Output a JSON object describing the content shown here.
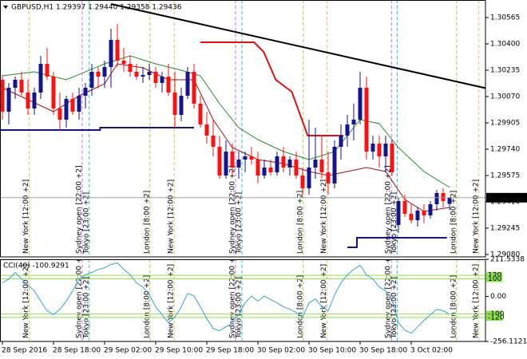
{
  "chart_data": [
    {
      "type": "candlestick",
      "title": "GBPUSD,H1  1.29397 1.29440 1.29358 1.29436",
      "bull_color": "#14148c",
      "bear_color": "#ff1010",
      "ylim": [
        1.29065,
        1.30675
      ],
      "yticks": [
        1.30565,
        {
          "value": 1.304,
          "label": "1.30400"
        },
        1.30235,
        {
          "value": 1.3007,
          "label": "1.30070"
        },
        1.29905,
        {
          "value": 1.2974,
          "label": "1.29740"
        },
        1.29575,
        {
          "value": 1.2941,
          "label": "1.29410"
        },
        1.29245,
        {
          "value": 1.2908,
          "label": "1.29080"
        }
      ],
      "xticks": [
        {
          "value": 0,
          "label": "28 Sep 2016"
        },
        {
          "value": 8,
          "label": "28 Sep 18:00"
        },
        {
          "value": 16,
          "label": "29 Sep 02:00"
        },
        {
          "value": 24,
          "label": "29 Sep 10:00"
        },
        {
          "value": 32,
          "label": "29 Sep 18:00"
        },
        {
          "value": 40,
          "label": "30 Sep 02:00"
        },
        {
          "value": 48,
          "label": "30 Sep 10:00"
        },
        {
          "value": 56,
          "label": "30 Sep 18:00"
        },
        {
          "value": 64,
          "label": "3 Oct 02:00"
        }
      ],
      "ohlc": [
        [
          1.30175,
          1.30205,
          1.29925,
          1.29975
        ],
        [
          1.29975,
          1.30155,
          1.29895,
          1.30125
        ],
        [
          1.30125,
          1.30195,
          1.30055,
          1.30175
        ],
        [
          1.30175,
          1.30225,
          1.30075,
          1.30095
        ],
        [
          1.30095,
          1.30175,
          1.29955,
          1.29995
        ],
        [
          1.29995,
          1.30125,
          1.29955,
          1.30095
        ],
        [
          1.30095,
          1.30325,
          1.30055,
          1.30275
        ],
        [
          1.30275,
          1.30375,
          1.30175,
          1.30195
        ],
        [
          1.30195,
          1.30225,
          1.29955,
          1.29995
        ],
        [
          1.29995,
          1.30095,
          1.29855,
          1.29925
        ],
        [
          1.29925,
          1.30075,
          1.29875,
          1.30055
        ],
        [
          1.30055,
          1.30095,
          1.29955,
          1.29975
        ],
        [
          1.29975,
          1.30125,
          1.29925,
          1.30075
        ],
        [
          1.30075,
          1.30155,
          1.29995,
          1.30125
        ],
        [
          1.30125,
          1.30275,
          1.30075,
          1.30225
        ],
        [
          1.30225,
          1.30255,
          1.30125,
          1.30195
        ],
        [
          1.30195,
          1.30295,
          1.30125,
          1.30255
        ],
        [
          1.30255,
          1.30495,
          1.30125,
          1.30425
        ],
        [
          1.30425,
          1.30525,
          1.30255,
          1.30295
        ],
        [
          1.30295,
          1.30375,
          1.30225,
          1.30275
        ],
        [
          1.30275,
          1.30325,
          1.30195,
          1.30225
        ],
        [
          1.30225,
          1.30275,
          1.30175,
          1.30195
        ],
        [
          1.30195,
          1.30255,
          1.30155,
          1.30205
        ],
        [
          1.30205,
          1.30275,
          1.30175,
          1.30225
        ],
        [
          1.30225,
          1.30255,
          1.30125,
          1.30155
        ],
        [
          1.30155,
          1.30225,
          1.30095,
          1.30195
        ],
        [
          1.30195,
          1.30275,
          1.30075,
          1.30095
        ],
        [
          1.30095,
          1.30225,
          1.29875,
          1.29955
        ],
        [
          1.29955,
          1.30125,
          1.29915,
          1.30075
        ],
        [
          1.30075,
          1.30255,
          1.30055,
          1.30225
        ],
        [
          1.30225,
          1.30275,
          1.29995,
          1.30025
        ],
        [
          1.30025,
          1.30075,
          1.29875,
          1.29895
        ],
        [
          1.29895,
          1.29975,
          1.29775,
          1.29825
        ],
        [
          1.29825,
          1.29925,
          1.29695,
          1.29755
        ],
        [
          1.29755,
          1.29825,
          1.29555,
          1.29575
        ],
        [
          1.29575,
          1.29795,
          1.29555,
          1.29725
        ],
        [
          1.29725,
          1.29775,
          1.29575,
          1.29625
        ],
        [
          1.29625,
          1.29725,
          1.29555,
          1.29675
        ],
        [
          1.29675,
          1.29725,
          1.29595,
          1.29695
        ],
        [
          1.29695,
          1.29755,
          1.29645,
          1.29675
        ],
        [
          1.29675,
          1.29725,
          1.29525,
          1.29575
        ],
        [
          1.29575,
          1.29675,
          1.29555,
          1.29625
        ],
        [
          1.29625,
          1.29675,
          1.29575,
          1.29595
        ],
        [
          1.29595,
          1.29725,
          1.29575,
          1.29695
        ],
        [
          1.29695,
          1.29755,
          1.29595,
          1.29625
        ],
        [
          1.29625,
          1.29695,
          1.29575,
          1.29675
        ],
        [
          1.29675,
          1.29725,
          1.29555,
          1.29575
        ],
        [
          1.29575,
          1.29625,
          1.29455,
          1.29495
        ],
        [
          1.29495,
          1.29925,
          1.29455,
          1.29625
        ],
        [
          1.29625,
          1.29875,
          1.29555,
          1.29675
        ],
        [
          1.29675,
          1.29825,
          1.29555,
          1.29595
        ],
        [
          1.29595,
          1.29725,
          1.29455,
          1.29525
        ],
        [
          1.29525,
          1.29795,
          1.29495,
          1.29755
        ],
        [
          1.29755,
          1.29895,
          1.29675,
          1.29825
        ],
        [
          1.29825,
          1.29955,
          1.29755,
          1.29895
        ],
        [
          1.29895,
          1.30025,
          1.29795,
          1.29925
        ],
        [
          1.29925,
          1.30225,
          1.29895,
          1.30125
        ],
        [
          1.30125,
          1.30195,
          1.29675,
          1.29725
        ],
        [
          1.29725,
          1.29825,
          1.29675,
          1.29775
        ],
        [
          1.29775,
          1.29825,
          1.29625,
          1.29695
        ],
        [
          1.29695,
          1.29825,
          1.29595,
          1.29775
        ],
        [
          1.29775,
          1.29795,
          1.29575,
          1.29595
        ],
        [
          1.29265,
          1.29435,
          1.29215,
          1.29415
        ],
        [
          1.29415,
          1.29455,
          1.29315,
          1.29335
        ],
        [
          1.29335,
          1.29395,
          1.29275,
          1.29295
        ],
        [
          1.29295,
          1.29375,
          1.29255,
          1.29355
        ],
        [
          1.29355,
          1.29395,
          1.29275,
          1.29325
        ],
        [
          1.29325,
          1.29415,
          1.29305,
          1.29395
        ],
        [
          1.29395,
          1.29485,
          1.29355,
          1.29465
        ],
        [
          1.29465,
          1.29495,
          1.29375,
          1.29415
        ],
        [
          1.29397,
          1.2944,
          1.29358,
          1.29436
        ]
      ],
      "overlays": [
        {
          "color": "#000000",
          "thick": true,
          "x": [
            17,
            76.5
          ],
          "values": [
            1.3065,
            1.30115
          ]
        },
        {
          "color": "#e01010",
          "thick": true,
          "x": [
            31,
            39.4,
            40.9,
            42.8,
            45.3,
            47.8,
            53.4
          ],
          "values": [
            1.3041,
            1.3041,
            1.3035,
            1.30175,
            1.301,
            1.29825,
            1.29825
          ]
        },
        {
          "color": "#14148c",
          "thick": true,
          "x": [
            -0.4,
            15.3,
            15.3,
            30
          ],
          "values": [
            1.2986,
            1.2986,
            1.29875,
            1.29875
          ]
        },
        {
          "color": "#14148c",
          "thick": true,
          "x": [
            54,
            55.5,
            55.5,
            69.6
          ],
          "values": [
            1.29125,
            1.29125,
            1.29185,
            1.29185
          ]
        },
        {
          "color": "#2a8a2a",
          "thick": false,
          "x": [
            0,
            5,
            10,
            16,
            20,
            24,
            28,
            31,
            34,
            37,
            40,
            44,
            48,
            52,
            56,
            59,
            62,
            66,
            70
          ],
          "values": [
            1.302,
            1.30225,
            1.30175,
            1.30275,
            1.30325,
            1.30275,
            1.30235,
            1.302,
            1.30025,
            1.29875,
            1.298,
            1.29725,
            1.29675,
            1.29725,
            1.29925,
            1.299,
            1.2975,
            1.296,
            1.295
          ]
        },
        {
          "color": "#a01010",
          "thick": false,
          "x": [
            0,
            4,
            8,
            12,
            16,
            18,
            22,
            26,
            30,
            33,
            36,
            40,
            44,
            48,
            51,
            54,
            57,
            60,
            63,
            66,
            70
          ],
          "values": [
            1.30125,
            1.3005,
            1.29975,
            1.30075,
            1.3015,
            1.30275,
            1.3025,
            1.30175,
            1.30175,
            1.29925,
            1.2975,
            1.29675,
            1.2965,
            1.296,
            1.29575,
            1.296,
            1.29625,
            1.296,
            1.29425,
            1.2935,
            1.29375
          ]
        }
      ],
      "sessions": [
        {
          "label": "New York  [12:00 +2]",
          "color": "#e2c15a",
          "x": [
            4.2,
            26.9,
            50.8,
            74.6
          ]
        },
        {
          "label": "Sydney open  [22:00 +2]",
          "color": "#c070ff",
          "x": [
            12.5,
            36.5,
            60.9
          ]
        },
        {
          "label": "Tokyo  [23:00 +2]",
          "color": "#20c0c8",
          "x": [
            13.6,
            37.5,
            61.8
          ]
        },
        {
          "label": "London  [8:00 +2]",
          "color": "#a8d040",
          "x": [
            23.1,
            47.1,
            71.1
          ]
        }
      ]
    },
    {
      "type": "line",
      "title": "CCI(40) -100.9291",
      "color": "#3aa0d8",
      "ylim": [
        -256.1121,
        211.5338
      ],
      "yticks": [
        211.5338,
        {
          "value": 0,
          "label": "0.00"
        },
        -256.1121
      ],
      "levels": [
        120,
        100,
        -100,
        -120
      ],
      "level_color": "#8ee04a",
      "values": [
        77,
        100,
        136,
        100,
        64,
        32,
        -27,
        -82,
        -104,
        -73,
        -27,
        32,
        100,
        123,
        136,
        154,
        163,
        182,
        191,
        154,
        123,
        77,
        54,
        9,
        -59,
        -104,
        -150,
        -118,
        -59,
        18,
        2,
        -59,
        -127,
        -182,
        -195,
        -173,
        -150,
        -104,
        -36,
        2,
        -27,
        2,
        -18,
        -36,
        -59,
        -73,
        -91,
        -118,
        -36,
        -14,
        -59,
        -82,
        9,
        77,
        123,
        154,
        177,
        123,
        100,
        54,
        32,
        -14,
        -150,
        -191,
        -209,
        -173,
        -136,
        -104,
        -73,
        -82,
        -100.9291
      ]
    }
  ]
}
